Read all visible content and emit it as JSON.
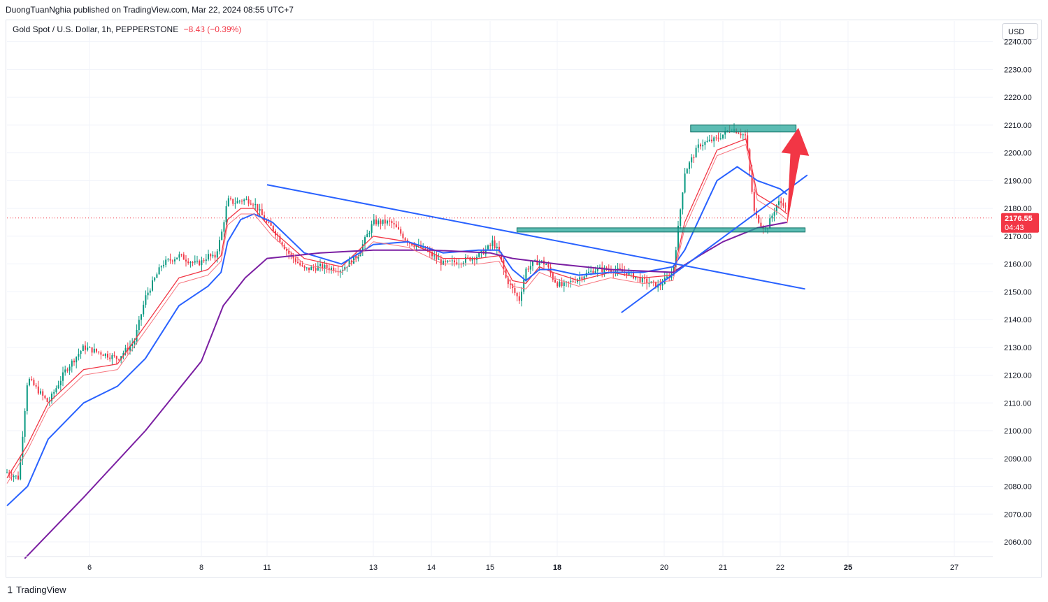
{
  "header": {
    "published": "DuongTuanNghia published on TradingView.com, Mar 22, 2024 08:55 UTC+7",
    "symbol": "Gold Spot / U.S. Dollar, 1h, PEPPERSTONE",
    "change": "−8.43 (−0.39%)",
    "currency": "USD"
  },
  "footer": {
    "brand": "TradingView",
    "logo_icon": "tradingview-logo-icon"
  },
  "colors": {
    "up": "#089981",
    "down": "#f23645",
    "ema_fast": "#f23645",
    "ema_mid": "#2962ff",
    "ema_slow": "#7b1fa2",
    "trendline": "#2962ff",
    "zone": "#26a69a",
    "arrow": "#f23645"
  },
  "chart_data": {
    "type": "line",
    "title": "Gold Spot / U.S. Dollar, 1h, PEPPERSTONE",
    "ylim": [
      2053,
      2243
    ],
    "yticks": [
      "2240.00",
      "2230.00",
      "2220.00",
      "2210.00",
      "2200.00",
      "2190.00",
      "2180.00",
      "2170.00",
      "2160.00",
      "2150.00",
      "2140.00",
      "2130.00",
      "2120.00",
      "2110.00",
      "2100.00",
      "2090.00",
      "2080.00",
      "2070.00",
      "2060.00"
    ],
    "xticks": [
      {
        "label": "6",
        "x": 6
      },
      {
        "label": "8",
        "x": 8
      },
      {
        "label": "11",
        "x": 11
      },
      {
        "label": "13",
        "x": 13
      },
      {
        "label": "14",
        "x": 14
      },
      {
        "label": "15",
        "x": 15
      },
      {
        "label": "18",
        "x": 18
      },
      {
        "label": "20",
        "x": 20
      },
      {
        "label": "21",
        "x": 21
      },
      {
        "label": "22",
        "x": 22
      },
      {
        "label": "25",
        "x": 25
      },
      {
        "label": "27",
        "x": 27
      }
    ],
    "price_label": "2176.55",
    "countdown": "04:43",
    "last_price": 2176.55,
    "series": [
      {
        "name": "",
        "role": "price",
        "points": [
          [
            4.6,
            2085
          ],
          [
            4.8,
            2083
          ],
          [
            4.95,
            2119
          ],
          [
            5.3,
            2110
          ],
          [
            5.6,
            2122
          ],
          [
            5.9,
            2130
          ],
          [
            6.2,
            2128
          ],
          [
            6.5,
            2126
          ],
          [
            6.8,
            2132
          ],
          [
            7.0,
            2148
          ],
          [
            7.3,
            2160
          ],
          [
            7.6,
            2163
          ],
          [
            7.9,
            2160
          ],
          [
            8.3,
            2163
          ],
          [
            8.6,
            2162
          ],
          [
            8.9,
            2170
          ],
          [
            9.2,
            2183
          ],
          [
            9.5,
            2182
          ],
          [
            9.8,
            2183
          ],
          [
            10.1,
            2183
          ],
          [
            10.4,
            2182
          ],
          [
            10.8,
            2177
          ],
          [
            11.1,
            2173
          ],
          [
            11.4,
            2164
          ],
          [
            11.7,
            2158
          ],
          [
            12.0,
            2159
          ],
          [
            12.4,
            2158
          ],
          [
            12.7,
            2163
          ],
          [
            13.0,
            2175
          ],
          [
            13.3,
            2175
          ],
          [
            13.6,
            2168
          ],
          [
            13.9,
            2165
          ],
          [
            14.2,
            2160
          ],
          [
            14.5,
            2161
          ],
          [
            14.8,
            2163
          ],
          [
            15.1,
            2168
          ],
          [
            15.4,
            2164
          ],
          [
            15.7,
            2155
          ],
          [
            16.0,
            2151
          ],
          [
            16.3,
            2147
          ],
          [
            16.6,
            2158
          ],
          [
            16.9,
            2160
          ],
          [
            17.2,
            2161
          ],
          [
            17.5,
            2160
          ],
          [
            17.8,
            2155
          ],
          [
            18.1,
            2152
          ],
          [
            18.4,
            2155
          ],
          [
            18.7,
            2158
          ],
          [
            19.0,
            2158
          ],
          [
            19.3,
            2157
          ],
          [
            19.6,
            2154
          ],
          [
            19.9,
            2152
          ],
          [
            20.15,
            2157
          ],
          [
            20.35,
            2193
          ],
          [
            20.6,
            2203
          ],
          [
            20.9,
            2205
          ],
          [
            21.15,
            2209
          ],
          [
            21.4,
            2206
          ],
          [
            21.55,
            2178
          ],
          [
            21.75,
            2172
          ],
          [
            21.95,
            2182
          ],
          [
            22.2,
            2182
          ],
          [
            22.3,
            2176.55
          ]
        ]
      },
      {
        "name": "",
        "role": "ema_fast",
        "points": [
          [
            4.6,
            2083
          ],
          [
            4.95,
            2095
          ],
          [
            5.3,
            2110
          ],
          [
            5.9,
            2122
          ],
          [
            6.5,
            2124
          ],
          [
            7.0,
            2138
          ],
          [
            7.6,
            2155
          ],
          [
            8.3,
            2158
          ],
          [
            8.9,
            2163
          ],
          [
            9.2,
            2176
          ],
          [
            9.8,
            2180
          ],
          [
            10.4,
            2180
          ],
          [
            11.1,
            2172
          ],
          [
            11.7,
            2162
          ],
          [
            12.4,
            2159
          ],
          [
            13.0,
            2170
          ],
          [
            13.6,
            2168
          ],
          [
            14.2,
            2162
          ],
          [
            14.8,
            2162
          ],
          [
            15.4,
            2163
          ],
          [
            16.0,
            2154
          ],
          [
            16.6,
            2153
          ],
          [
            17.2,
            2159
          ],
          [
            17.8,
            2157
          ],
          [
            18.4,
            2154
          ],
          [
            19.0,
            2157
          ],
          [
            19.6,
            2155
          ],
          [
            20.15,
            2156
          ],
          [
            20.35,
            2175
          ],
          [
            20.9,
            2201
          ],
          [
            21.4,
            2205
          ],
          [
            21.6,
            2185
          ],
          [
            22.0,
            2180
          ],
          [
            22.3,
            2178
          ]
        ]
      },
      {
        "name": "",
        "role": "ema_mid",
        "points": [
          [
            4.6,
            2073
          ],
          [
            4.95,
            2080
          ],
          [
            5.3,
            2097
          ],
          [
            5.9,
            2110
          ],
          [
            6.5,
            2116
          ],
          [
            7.0,
            2126
          ],
          [
            7.6,
            2145
          ],
          [
            8.3,
            2152
          ],
          [
            8.9,
            2157
          ],
          [
            9.2,
            2168
          ],
          [
            9.8,
            2176
          ],
          [
            10.4,
            2178
          ],
          [
            11.1,
            2175
          ],
          [
            11.7,
            2164
          ],
          [
            12.4,
            2160
          ],
          [
            13.0,
            2167
          ],
          [
            13.6,
            2168
          ],
          [
            14.2,
            2164
          ],
          [
            14.8,
            2165
          ],
          [
            15.4,
            2165
          ],
          [
            16.0,
            2158
          ],
          [
            16.6,
            2154
          ],
          [
            17.2,
            2158
          ],
          [
            17.8,
            2158
          ],
          [
            18.4,
            2156
          ],
          [
            19.0,
            2157
          ],
          [
            19.6,
            2157
          ],
          [
            20.15,
            2159
          ],
          [
            20.35,
            2165
          ],
          [
            20.9,
            2190
          ],
          [
            21.25,
            2195
          ],
          [
            21.6,
            2190
          ],
          [
            22.0,
            2187
          ],
          [
            22.3,
            2185
          ]
        ]
      },
      {
        "name": "",
        "role": "ema_slow",
        "points": [
          [
            4.9,
            2054
          ],
          [
            5.9,
            2076
          ],
          [
            7.0,
            2100
          ],
          [
            8.0,
            2125
          ],
          [
            9.0,
            2145
          ],
          [
            10.0,
            2155
          ],
          [
            11.0,
            2162
          ],
          [
            12.0,
            2164
          ],
          [
            13.0,
            2165
          ],
          [
            14.0,
            2165
          ],
          [
            15.0,
            2164
          ],
          [
            16.0,
            2162
          ],
          [
            17.0,
            2161
          ],
          [
            18.0,
            2160
          ],
          [
            19.0,
            2158
          ],
          [
            20.15,
            2157
          ],
          [
            20.6,
            2163
          ],
          [
            21.0,
            2168
          ],
          [
            21.6,
            2173
          ],
          [
            22.3,
            2175
          ]
        ]
      }
    ],
    "annotations": {
      "resistance_zone": {
        "x": [
          20.45,
          22.7
        ],
        "y": [
          2207.5,
          2210.0
        ]
      },
      "support_zone": {
        "x": [
          16.2,
          23.1
        ],
        "y": [
          2171.5,
          2173.0
        ]
      },
      "descending_trendline": [
        [
          11.0,
          2188.5
        ],
        [
          23.1,
          2151.0
        ]
      ],
      "ascending_trendline": [
        [
          19.2,
          2142.5
        ],
        [
          23.2,
          2192.0
        ]
      ],
      "arrow": {
        "from": [
          22.3,
          2174
        ],
        "to": [
          22.8,
          2209
        ]
      }
    }
  }
}
